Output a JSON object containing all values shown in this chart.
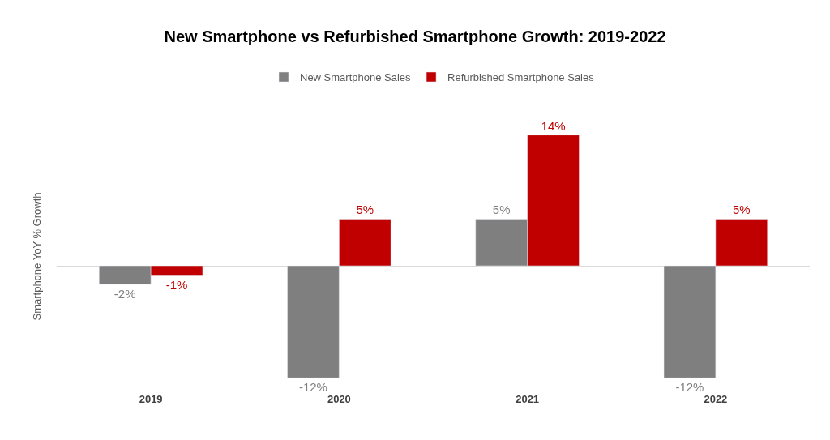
{
  "chart_data": {
    "type": "bar",
    "title": "New Smartphone vs Refurbished Smartphone Growth: 2019-2022",
    "ylabel": "Smartphone YoY % Growth",
    "categories": [
      "2019",
      "2020",
      "2021",
      "2022"
    ],
    "series": [
      {
        "name": "New Smartphone Sales",
        "color": "#7f7f7f",
        "values": [
          -2,
          -12,
          5,
          -12
        ],
        "value_labels": [
          "-2%",
          "-12%",
          "5%",
          "-12%"
        ]
      },
      {
        "name": "Refurbished Smartphone Sales",
        "color": "#c00000",
        "values": [
          -1,
          5,
          14,
          5
        ],
        "value_labels": [
          "-1%",
          "5%",
          "14%",
          "5%"
        ]
      }
    ],
    "tick_labels": "x",
    "legend": "top"
  }
}
